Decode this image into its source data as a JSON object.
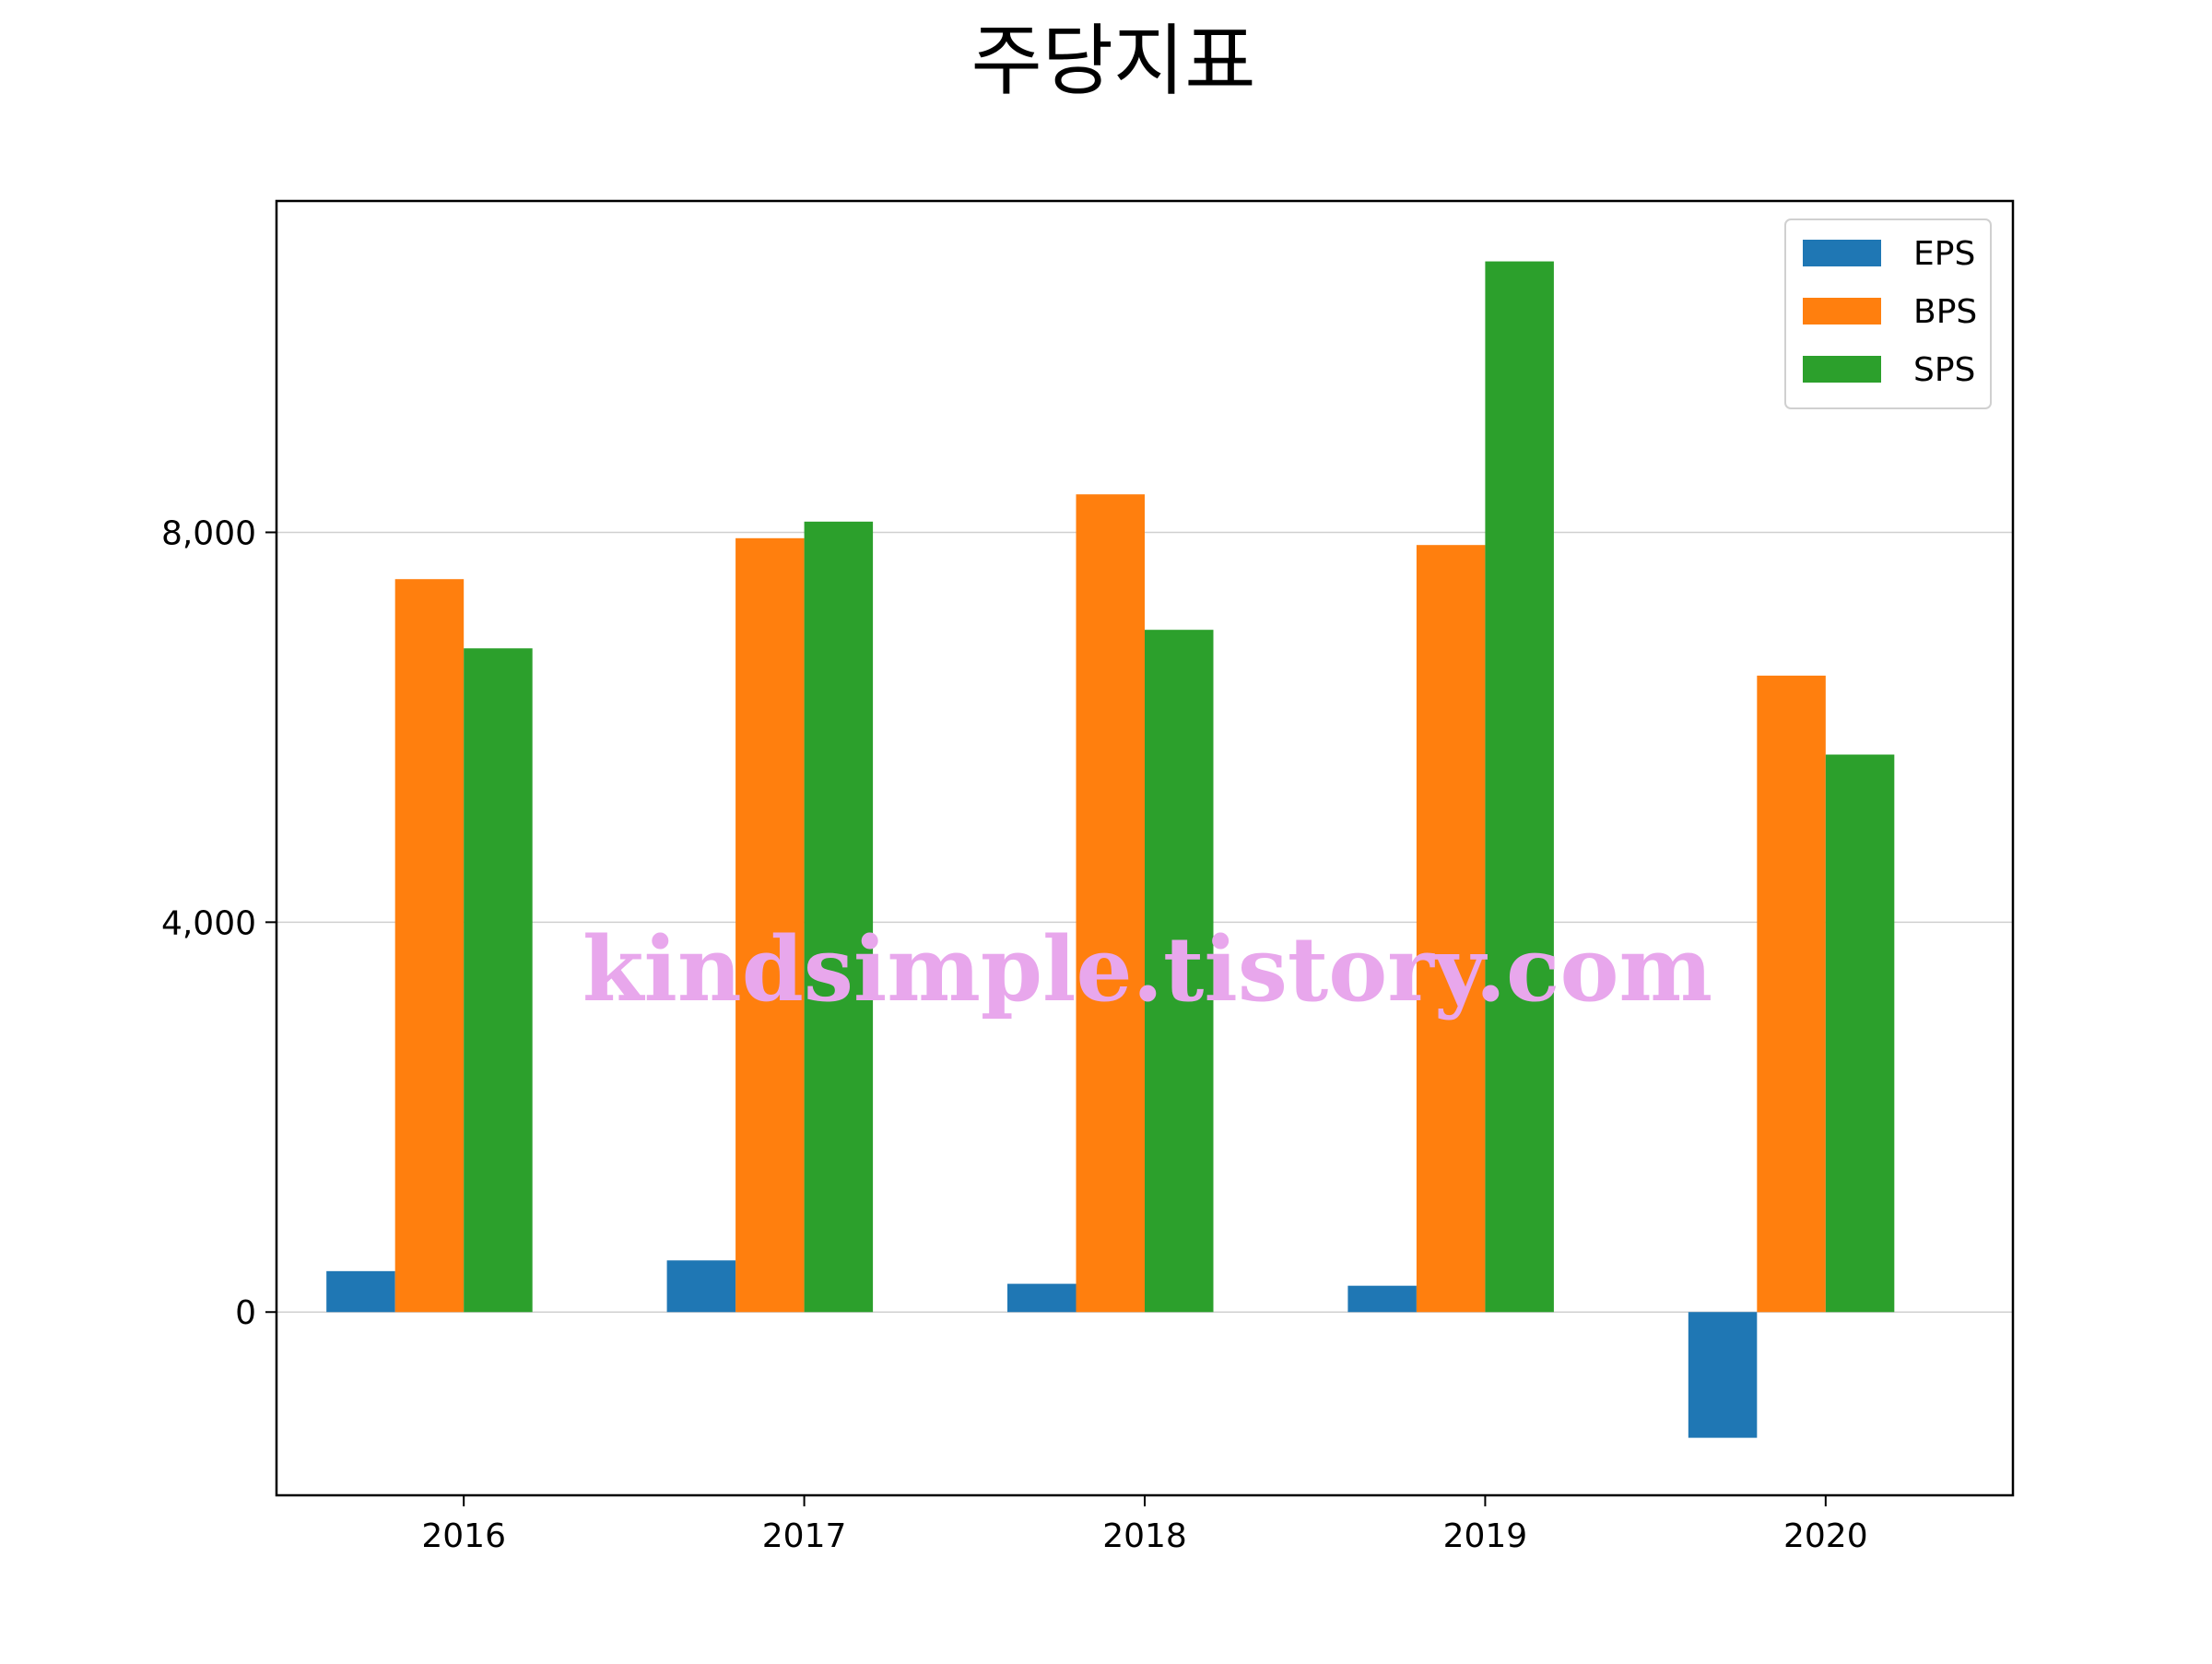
{
  "chart_data": {
    "type": "bar",
    "title": "주당지표",
    "xlabel": "",
    "ylabel": "",
    "categories": [
      "2016",
      "2017",
      "2018",
      "2019",
      "2020"
    ],
    "series": [
      {
        "name": "EPS",
        "color": "#1f77b4",
        "values": [
          420,
          530,
          290,
          270,
          -1290
        ]
      },
      {
        "name": "BPS",
        "color": "#ff7f0e",
        "values": [
          7520,
          7940,
          8390,
          7870,
          6530
        ]
      },
      {
        "name": "SPS",
        "color": "#2ca02c",
        "values": [
          6810,
          8110,
          7000,
          10780,
          5720
        ]
      }
    ],
    "yticks": [
      0,
      4000,
      8000
    ],
    "ytick_labels": [
      "0",
      "4,000",
      "8,000"
    ],
    "ylim": [
      -1880,
      11400
    ],
    "grid": "horizontal",
    "legend_position": "top-right"
  },
  "watermark": "kindsimple.tistory.com"
}
